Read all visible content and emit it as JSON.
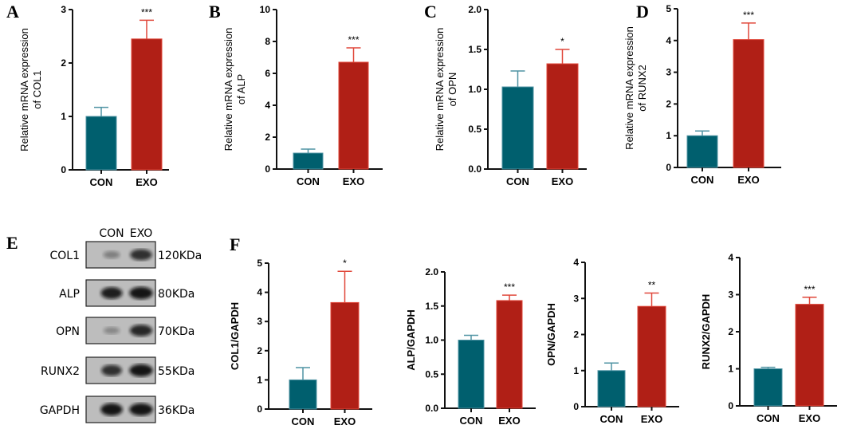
{
  "colors": {
    "CON": "#005f6e",
    "EXO": "#b01f16",
    "CON_err": "#4f93a3",
    "EXO_err": "#e0473a"
  },
  "western_blot": {
    "panel": "E",
    "lanes": [
      "CON",
      "EXO"
    ],
    "proteins": [
      {
        "name": "COL1",
        "size": "120KDa",
        "band_intensity": [
          0.35,
          0.8
        ]
      },
      {
        "name": "ALP",
        "size": "80KDa",
        "band_intensity": [
          0.9,
          0.95
        ]
      },
      {
        "name": "OPN",
        "size": "70KDa",
        "band_intensity": [
          0.3,
          0.85
        ]
      },
      {
        "name": "RUNX2",
        "size": "55KDa",
        "band_intensity": [
          0.8,
          0.95
        ]
      },
      {
        "name": "GAPDH",
        "size": "36KDa",
        "band_intensity": [
          0.95,
          0.95
        ]
      }
    ]
  },
  "chart_data": [
    {
      "panel": "A",
      "type": "bar",
      "categories": [
        "CON",
        "EXO"
      ],
      "values": [
        1.0,
        2.45
      ],
      "error_upper": [
        1.17,
        2.8
      ],
      "significance": [
        "",
        "***"
      ],
      "ylabel": [
        "Relative mRNA expression",
        "of COL1"
      ],
      "ylim": [
        0,
        3
      ],
      "yticks": [
        "0",
        "1",
        "2",
        "3"
      ]
    },
    {
      "panel": "B",
      "type": "bar",
      "categories": [
        "CON",
        "EXO"
      ],
      "values": [
        1.0,
        6.7
      ],
      "error_upper": [
        1.25,
        7.6
      ],
      "significance": [
        "",
        "***"
      ],
      "ylabel": [
        "Relative mRNA expression",
        "of ALP"
      ],
      "ylim": [
        0,
        10
      ],
      "yticks": [
        "0",
        "2",
        "4",
        "6",
        "8",
        "10"
      ]
    },
    {
      "panel": "C",
      "type": "bar",
      "categories": [
        "CON",
        "EXO"
      ],
      "values": [
        1.03,
        1.32
      ],
      "error_upper": [
        1.23,
        1.5
      ],
      "significance": [
        "",
        "*"
      ],
      "ylabel": [
        "Relative mRNA expression",
        "of OPN"
      ],
      "ylim": [
        0,
        2
      ],
      "yticks": [
        "0.0",
        "0.5",
        "1.0",
        "1.5",
        "2.0"
      ]
    },
    {
      "panel": "D",
      "type": "bar",
      "categories": [
        "CON",
        "EXO"
      ],
      "values": [
        1.0,
        4.03
      ],
      "error_upper": [
        1.15,
        4.55
      ],
      "significance": [
        "",
        "***"
      ],
      "ylabel": [
        "Relative mRNA expression",
        "of RUNX2"
      ],
      "ylim": [
        0,
        5
      ],
      "yticks": [
        "0",
        "1",
        "2",
        "3",
        "4",
        "5"
      ]
    },
    {
      "panel": "F",
      "type": "bar",
      "categories": [
        "CON",
        "EXO"
      ],
      "values": [
        1.0,
        3.65
      ],
      "error_upper": [
        1.42,
        4.72
      ],
      "significance": [
        "",
        "*"
      ],
      "ylabel": [
        "COL1/GAPDH"
      ],
      "ylim": [
        0,
        5
      ],
      "yticks": [
        "0",
        "1",
        "2",
        "3",
        "4",
        "5"
      ]
    },
    {
      "panel": "",
      "type": "bar",
      "categories": [
        "CON",
        "EXO"
      ],
      "values": [
        1.0,
        1.58
      ],
      "error_upper": [
        1.07,
        1.66
      ],
      "significance": [
        "",
        "***"
      ],
      "ylabel": [
        "ALP/GAPDH"
      ],
      "ylim": [
        0,
        2
      ],
      "yticks": [
        "0.0",
        "0.5",
        "1.0",
        "1.5",
        "2.0"
      ]
    },
    {
      "panel": "",
      "type": "bar",
      "categories": [
        "CON",
        "EXO"
      ],
      "values": [
        1.0,
        2.78
      ],
      "error_upper": [
        1.21,
        3.15
      ],
      "significance": [
        "",
        "**"
      ],
      "ylabel": [
        "OPN/GAPDH"
      ],
      "ylim": [
        0,
        4
      ],
      "yticks": [
        "0",
        "1",
        "2",
        "3",
        "4"
      ]
    },
    {
      "panel": "",
      "type": "bar",
      "categories": [
        "CON",
        "EXO"
      ],
      "values": [
        1.0,
        2.74
      ],
      "error_upper": [
        1.04,
        2.93
      ],
      "significance": [
        "",
        "***"
      ],
      "ylabel": [
        "RUNX2/GAPDH"
      ],
      "ylim": [
        0,
        4
      ],
      "yticks": [
        "0",
        "1",
        "2",
        "3",
        "4"
      ]
    }
  ]
}
